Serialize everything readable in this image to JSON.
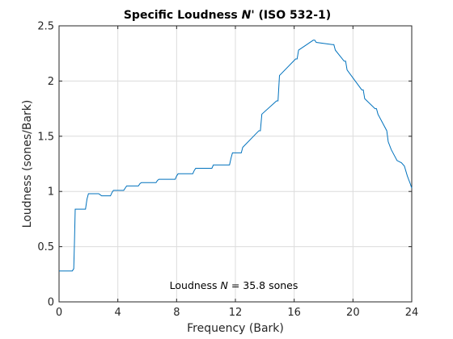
{
  "figure": {
    "title_main": "Specific Loudness ",
    "title_symbol": "N'",
    "title_suffix": "  (ISO 532-1)",
    "xlabel": "Frequency (Bark)",
    "ylabel": "Loudness (sones/Bark)",
    "annotation_prefix": "Loudness ",
    "annotation_symbol": "N",
    "annotation_suffix": " = 35.8 sones"
  },
  "chart_data": {
    "type": "line",
    "title": "Specific Loudness N'  (ISO 532-1)",
    "xlabel": "Frequency (Bark)",
    "ylabel": "Loudness (sones/Bark)",
    "xlim": [
      0,
      24
    ],
    "ylim": [
      0,
      2.5
    ],
    "xticks": [
      0,
      4,
      8,
      12,
      16,
      20,
      24
    ],
    "yticks": [
      0,
      0.5,
      1,
      1.5,
      2,
      2.5
    ],
    "xtick_labels": [
      "0",
      "4",
      "8",
      "12",
      "16",
      "20",
      "24"
    ],
    "ytick_labels": [
      "0",
      "0.5",
      "1",
      "1.5",
      "2",
      "2.5"
    ],
    "grid": true,
    "line_color": "#0072BD",
    "annotation": "Loudness N = 35.8 sones",
    "series": [
      {
        "x": [
          0,
          0.9,
          1.0,
          1.05,
          1.1,
          1.8,
          1.9,
          2.0,
          2.7,
          2.8,
          2.9,
          3.5,
          3.6,
          3.7,
          4.4,
          4.5,
          4.6,
          5.4,
          5.5,
          5.6,
          6.6,
          6.7,
          6.8,
          7.9,
          8.0,
          8.1,
          9.1,
          9.2,
          9.3,
          10.4,
          10.5,
          10.6,
          11.6,
          11.7,
          11.8,
          12.3,
          12.4,
          12.5,
          13.6,
          13.7,
          13.8,
          14.8,
          14.9,
          15.0,
          16.1,
          16.2,
          16.3,
          17.3,
          17.4,
          17.5,
          18.6,
          18.7,
          18.8,
          19.4,
          19.5,
          19.6,
          20.6,
          20.7,
          20.8,
          21.5,
          21.6,
          21.7,
          22.3,
          22.4,
          22.6,
          22.8,
          23.0,
          23.3,
          23.5,
          23.7,
          23.9,
          24.0
        ],
        "y": [
          0.28,
          0.28,
          0.3,
          0.55,
          0.84,
          0.84,
          0.93,
          0.98,
          0.98,
          0.97,
          0.96,
          0.96,
          0.99,
          1.01,
          1.01,
          1.03,
          1.05,
          1.05,
          1.07,
          1.08,
          1.08,
          1.1,
          1.11,
          1.11,
          1.14,
          1.16,
          1.16,
          1.19,
          1.21,
          1.21,
          1.24,
          1.24,
          1.24,
          1.3,
          1.35,
          1.35,
          1.35,
          1.4,
          1.55,
          1.55,
          1.7,
          1.82,
          1.82,
          2.05,
          2.2,
          2.2,
          2.28,
          2.37,
          2.37,
          2.35,
          2.33,
          2.33,
          2.28,
          2.18,
          2.18,
          2.1,
          1.92,
          1.92,
          1.84,
          1.75,
          1.75,
          1.7,
          1.55,
          1.45,
          1.38,
          1.33,
          1.28,
          1.26,
          1.23,
          1.14,
          1.07,
          1.03
        ]
      }
    ]
  }
}
